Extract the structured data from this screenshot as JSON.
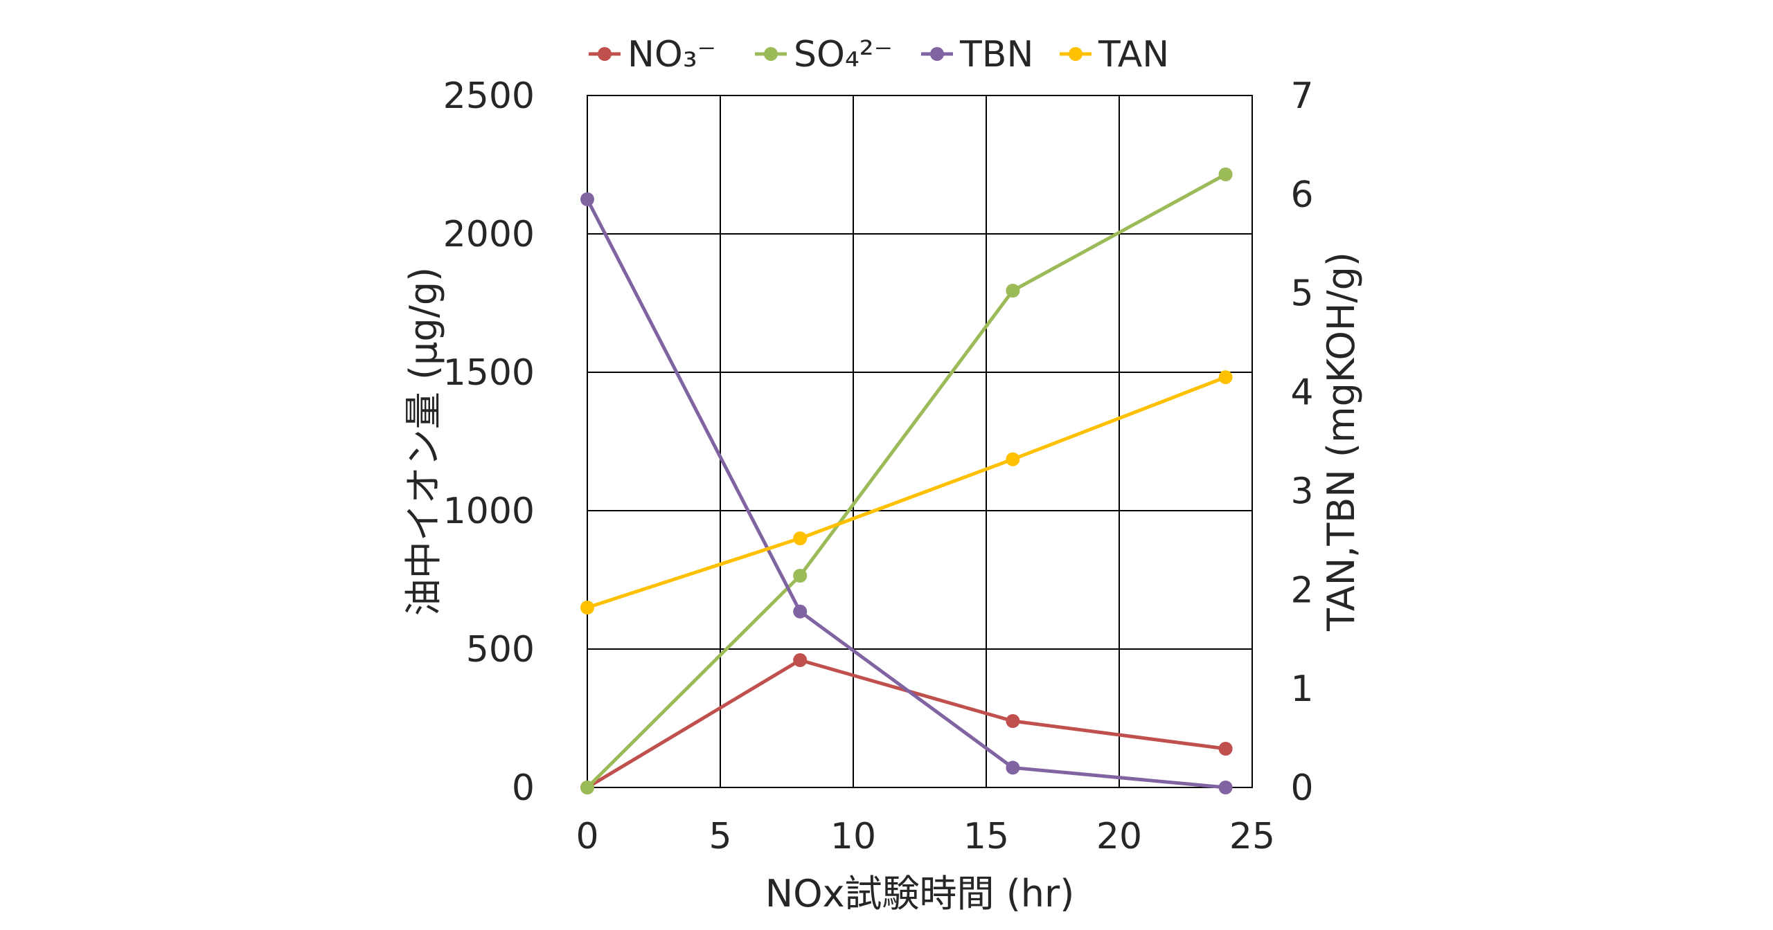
{
  "chart_data": {
    "type": "line",
    "title": "",
    "xlabel": "NOx試験時間 (hr)",
    "ylabel_left": "油中イオン量 (μg/g)",
    "ylabel_right": "TAN,TBN (mgKOH/g)",
    "x_ticks": [
      "0",
      "5",
      "10",
      "15",
      "20",
      "25"
    ],
    "y_left_ticks": [
      "0",
      "500",
      "1000",
      "1500",
      "2000",
      "2500"
    ],
    "y_right_ticks": [
      "0",
      "1",
      "2",
      "3",
      "4",
      "5",
      "6",
      "7"
    ],
    "xlim": [
      0,
      25
    ],
    "ylim_left": [
      0,
      2500
    ],
    "ylim_right": [
      0,
      7
    ],
    "grid": true,
    "legend_position": "top",
    "series": [
      {
        "name": "NO₃⁻",
        "axis": "left",
        "color": "#C0504D",
        "x": [
          0,
          8,
          16,
          24
        ],
        "values": [
          0,
          460,
          240,
          140
        ]
      },
      {
        "name": "SO₄²⁻",
        "axis": "left",
        "color": "#9BBB59",
        "x": [
          0,
          8,
          16,
          24
        ],
        "values": [
          0,
          765,
          1795,
          2215
        ]
      },
      {
        "name": "TBN",
        "axis": "right",
        "color": "#8064A2",
        "x": [
          0,
          8,
          16,
          24
        ],
        "values": [
          5.95,
          1.78,
          0.2,
          0.0
        ]
      },
      {
        "name": "TAN",
        "axis": "right",
        "color": "#FFC000",
        "x": [
          0,
          8,
          16,
          24
        ],
        "values": [
          1.82,
          2.52,
          3.32,
          4.15
        ]
      }
    ]
  }
}
